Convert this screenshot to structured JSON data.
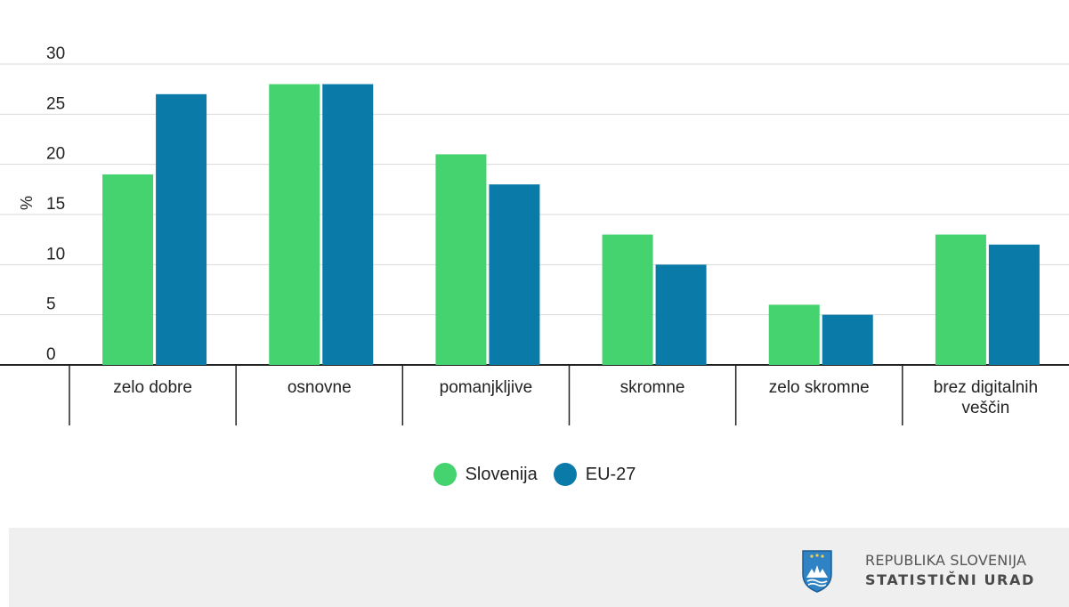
{
  "chart_data": {
    "type": "bar",
    "ylabel": "%",
    "ylim": [
      0,
      30
    ],
    "yticks": [
      0,
      5,
      10,
      15,
      20,
      25,
      30
    ],
    "grid": true,
    "legend_position": "bottom",
    "categories": [
      [
        "zelo dobre"
      ],
      [
        "osnovne"
      ],
      [
        "pomanjkljive"
      ],
      [
        "skromne"
      ],
      [
        "zelo skromne"
      ],
      [
        "brez digitalnih",
        "veščin"
      ]
    ],
    "series": [
      {
        "name": "Slovenija",
        "color": "#44d36e",
        "values": [
          19,
          28,
          21,
          13,
          6,
          13
        ]
      },
      {
        "name": "EU-27",
        "color": "#0a7ba8",
        "values": [
          27,
          28,
          18,
          10,
          5,
          12
        ]
      }
    ]
  },
  "legend": {
    "items": [
      {
        "label": "Slovenija",
        "color": "#44d36e"
      },
      {
        "label": "EU-27",
        "color": "#0a7ba8"
      }
    ]
  },
  "footer": {
    "org_line1": "REPUBLIKA SLOVENIJA",
    "org_line2": "STATISTIČNI URAD",
    "logo_icon": "coat-of-arms-icon"
  }
}
